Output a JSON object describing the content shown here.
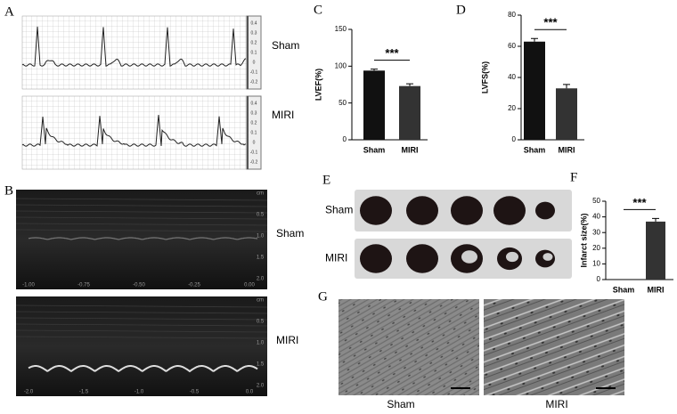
{
  "panel_labels": [
    "A",
    "B",
    "C",
    "D",
    "E",
    "F",
    "G"
  ],
  "ecg": {
    "labels": [
      "Sham",
      "MIRI"
    ],
    "scale_ticks": [
      0.4,
      0.3,
      0.2,
      0.1,
      0,
      -0.1,
      -0.2
    ]
  },
  "echo": {
    "labels": [
      "Sham",
      "MIRI"
    ],
    "depth_labels": [
      "cm",
      "0.5",
      "1.0",
      "1.5",
      "2.0"
    ],
    "time_labels": [
      [
        "-1.00",
        "-0.75",
        "-0.50",
        "-0.25",
        "0.00"
      ],
      [
        "-2.0",
        "-1.5",
        "-1.0",
        "-0.5",
        "0.0"
      ]
    ]
  },
  "ttc": {
    "labels": [
      "Sham",
      "MIRI"
    ]
  },
  "histology": {
    "labels": [
      "Sham",
      "MIRI"
    ]
  },
  "chart_data": [
    {
      "type": "bar",
      "y_label": "LVEF(%)",
      "categories": [
        "Sham",
        "MIRI"
      ],
      "values": [
        94,
        73
      ],
      "errors": [
        2,
        3
      ],
      "color": [
        "#111111",
        "#333333"
      ],
      "ylim": [
        0,
        150
      ],
      "yticks": [
        0,
        50,
        100,
        150
      ],
      "annotation": "***"
    },
    {
      "type": "bar",
      "y_label": "LVFS(%)",
      "categories": [
        "Sham",
        "MIRI"
      ],
      "values": [
        63,
        33
      ],
      "errors": [
        2,
        2.5
      ],
      "color": [
        "#111111",
        "#333333"
      ],
      "ylim": [
        0,
        80
      ],
      "yticks": [
        0,
        20,
        40,
        60,
        80
      ],
      "annotation": "***"
    },
    {
      "type": "bar",
      "y_label": "Infarct size(%)",
      "categories": [
        "Sham",
        "MIRI"
      ],
      "values": [
        0,
        37
      ],
      "errors": [
        0,
        2
      ],
      "color": [
        "#111111",
        "#333333"
      ],
      "ylim": [
        0,
        50
      ],
      "yticks": [
        0,
        10,
        20,
        30,
        40,
        50
      ],
      "annotation": "***"
    }
  ]
}
